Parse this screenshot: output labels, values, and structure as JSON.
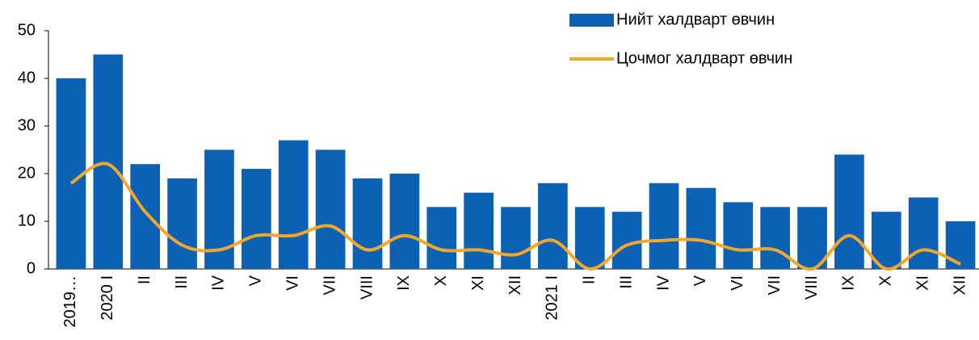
{
  "chart_data": {
    "type": "bar",
    "categories": [
      "2019…",
      "2020 I",
      "II",
      "III",
      "IV",
      "V",
      "VI",
      "VII",
      "VIII",
      "IX",
      "X",
      "XI",
      "XII",
      "2021 I",
      "II",
      "III",
      "IV",
      "V",
      "VI",
      "VII",
      "VIII",
      "IX",
      "X",
      "XI",
      "XII"
    ],
    "series": [
      {
        "name": "Нийт халдварт өвчин",
        "color": "#0b62b5",
        "type": "bar",
        "values": [
          40,
          45,
          22,
          19,
          25,
          21,
          27,
          25,
          19,
          20,
          13,
          16,
          13,
          18,
          13,
          12,
          18,
          17,
          14,
          13,
          13,
          24,
          12,
          15,
          10
        ]
      },
      {
        "name": "Цочмог халдварт өвчин",
        "color": "#f4a62a",
        "type": "line",
        "values": [
          18,
          22,
          12,
          5,
          4,
          7,
          7,
          9,
          4,
          7,
          4,
          4,
          3,
          6,
          0,
          5,
          6,
          6,
          4,
          4,
          0,
          7,
          0,
          4,
          1
        ]
      }
    ],
    "ylim": [
      0,
      50
    ],
    "yticks": [
      0,
      10,
      20,
      30,
      40,
      50
    ],
    "legend": "top-right"
  }
}
